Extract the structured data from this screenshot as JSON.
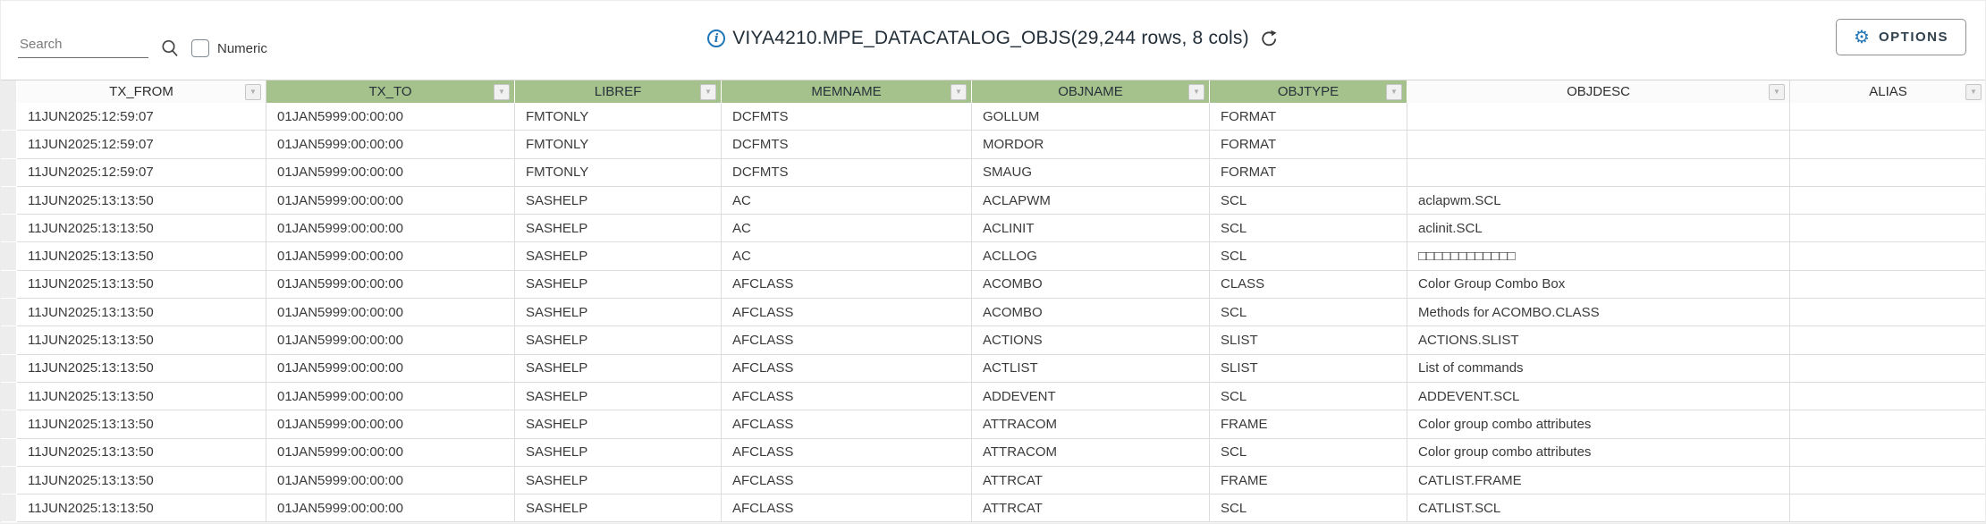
{
  "toolbar": {
    "search_placeholder": "Search",
    "numeric_label": "Numeric",
    "title": "VIYA4210.MPE_DATACATALOG_OBJS(29,244 rows, 8 cols)",
    "options_label": "OPTIONS"
  },
  "icons": {
    "info": "i",
    "gear": "⚙",
    "filter_dropdown": "▼",
    "search": "magnifier-glyph",
    "refresh": "clockwise-arrow"
  },
  "colors": {
    "header_green": "#a6c28c",
    "accent_blue": "#1f77b8",
    "title_text": "#222e38"
  },
  "table": {
    "columns": [
      {
        "label": "TX_FROM",
        "green": false
      },
      {
        "label": "TX_TO",
        "green": true
      },
      {
        "label": "LIBREF",
        "green": true
      },
      {
        "label": "MEMNAME",
        "green": true
      },
      {
        "label": "OBJNAME",
        "green": true
      },
      {
        "label": "OBJTYPE",
        "green": true
      },
      {
        "label": "OBJDESC",
        "green": false
      },
      {
        "label": "ALIAS",
        "green": false
      }
    ],
    "rows": [
      [
        "11JUN2025:12:59:07",
        "01JAN5999:00:00:00",
        "FMTONLY",
        "DCFMTS",
        "GOLLUM",
        "FORMAT",
        "",
        ""
      ],
      [
        "11JUN2025:12:59:07",
        "01JAN5999:00:00:00",
        "FMTONLY",
        "DCFMTS",
        "MORDOR",
        "FORMAT",
        "",
        ""
      ],
      [
        "11JUN2025:12:59:07",
        "01JAN5999:00:00:00",
        "FMTONLY",
        "DCFMTS",
        "SMAUG",
        "FORMAT",
        "",
        ""
      ],
      [
        "11JUN2025:13:13:50",
        "01JAN5999:00:00:00",
        "SASHELP",
        "AC",
        "ACLAPWM",
        "SCL",
        "aclapwm.SCL",
        ""
      ],
      [
        "11JUN2025:13:13:50",
        "01JAN5999:00:00:00",
        "SASHELP",
        "AC",
        "ACLINIT",
        "SCL",
        "aclinit.SCL",
        ""
      ],
      [
        "11JUN2025:13:13:50",
        "01JAN5999:00:00:00",
        "SASHELP",
        "AC",
        "ACLLOG",
        "SCL",
        "□□□□□□□□□□□□",
        ""
      ],
      [
        "11JUN2025:13:13:50",
        "01JAN5999:00:00:00",
        "SASHELP",
        "AFCLASS",
        "ACOMBO",
        "CLASS",
        "Color Group Combo Box",
        ""
      ],
      [
        "11JUN2025:13:13:50",
        "01JAN5999:00:00:00",
        "SASHELP",
        "AFCLASS",
        "ACOMBO",
        "SCL",
        "Methods for ACOMBO.CLASS",
        ""
      ],
      [
        "11JUN2025:13:13:50",
        "01JAN5999:00:00:00",
        "SASHELP",
        "AFCLASS",
        "ACTIONS",
        "SLIST",
        "ACTIONS.SLIST",
        ""
      ],
      [
        "11JUN2025:13:13:50",
        "01JAN5999:00:00:00",
        "SASHELP",
        "AFCLASS",
        "ACTLIST",
        "SLIST",
        "List of commands",
        ""
      ],
      [
        "11JUN2025:13:13:50",
        "01JAN5999:00:00:00",
        "SASHELP",
        "AFCLASS",
        "ADDEVENT",
        "SCL",
        "ADDEVENT.SCL",
        ""
      ],
      [
        "11JUN2025:13:13:50",
        "01JAN5999:00:00:00",
        "SASHELP",
        "AFCLASS",
        "ATTRACOM",
        "FRAME",
        "Color group combo attributes",
        ""
      ],
      [
        "11JUN2025:13:13:50",
        "01JAN5999:00:00:00",
        "SASHELP",
        "AFCLASS",
        "ATTRACOM",
        "SCL",
        "Color group combo attributes",
        ""
      ],
      [
        "11JUN2025:13:13:50",
        "01JAN5999:00:00:00",
        "SASHELP",
        "AFCLASS",
        "ATTRCAT",
        "FRAME",
        "CATLIST.FRAME",
        ""
      ],
      [
        "11JUN2025:13:13:50",
        "01JAN5999:00:00:00",
        "SASHELP",
        "AFCLASS",
        "ATTRCAT",
        "SCL",
        "CATLIST.SCL",
        ""
      ]
    ]
  }
}
